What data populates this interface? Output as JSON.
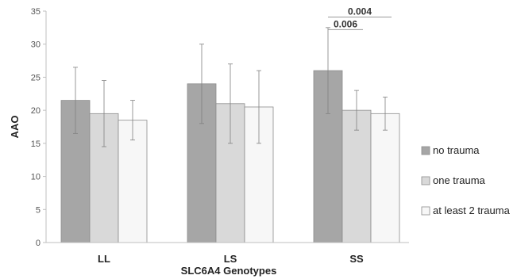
{
  "chart_data": {
    "type": "bar",
    "title": "",
    "xlabel": "SLC6A4 Genotypes",
    "ylabel": "AAO",
    "ylim": [
      0,
      35
    ],
    "yticks": [
      0,
      5,
      10,
      15,
      20,
      25,
      30,
      35
    ],
    "categories": [
      "LL",
      "LS",
      "SS"
    ],
    "grid": false,
    "legend": "right",
    "series": [
      {
        "name": "no trauma",
        "color": "#a6a6a6",
        "values": [
          21.5,
          24,
          26
        ],
        "err_low": [
          16.5,
          18,
          19.5
        ],
        "err_high": [
          26.5,
          30,
          32.5
        ]
      },
      {
        "name": "one trauma",
        "color": "#d9d9d9",
        "values": [
          19.5,
          21,
          20
        ],
        "err_low": [
          14.5,
          15,
          17
        ],
        "err_high": [
          24.5,
          27,
          23
        ]
      },
      {
        "name": "at least 2 trauma",
        "color": "#f7f7f7",
        "values": [
          18.5,
          20.5,
          19.5
        ],
        "err_low": [
          15.5,
          15,
          17
        ],
        "err_high": [
          21.5,
          26,
          22
        ]
      }
    ],
    "annotations": [
      {
        "text": "0.004",
        "category": "SS",
        "from_series": 0,
        "to_series": 2,
        "y": 34.1
      },
      {
        "text": "0.006",
        "category": "SS",
        "from_series": 0,
        "to_series": 1,
        "y": 32.2
      }
    ]
  }
}
